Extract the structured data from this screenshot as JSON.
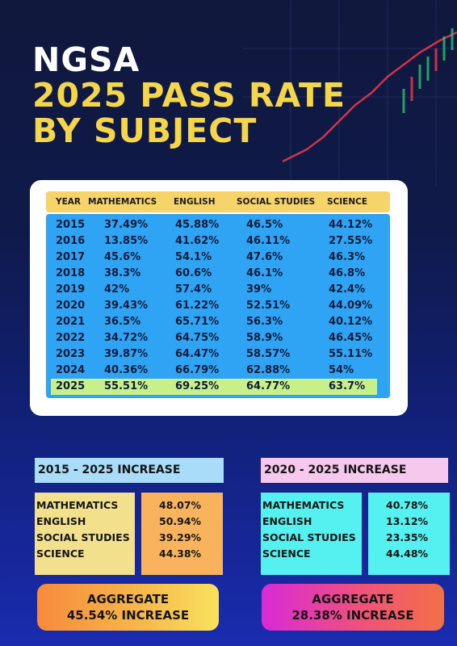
{
  "title": {
    "line1": "NGSA",
    "line2": "2025 PASS RATE",
    "line3": "BY SUBJECT"
  },
  "table": {
    "headers": [
      "YEAR",
      "MATHEMATICS",
      "ENGLISH",
      "SOCIAL STUDIES",
      "SCIENCE"
    ],
    "rows": [
      [
        "2015",
        "37.49%",
        "45.88%",
        "46.5%",
        "44.12%"
      ],
      [
        "2016",
        "13.85%",
        "41.62%",
        "46.11%",
        "27.55%"
      ],
      [
        "2017",
        "45.6%",
        "54.1%",
        "47.6%",
        "46.3%"
      ],
      [
        "2018",
        "38.3%",
        "60.6%",
        "46.1%",
        "46.8%"
      ],
      [
        "2019",
        "42%",
        "57.4%",
        "39%",
        "42.4%"
      ],
      [
        "2020",
        "39.43%",
        "61.22%",
        "52.51%",
        "44.09%"
      ],
      [
        "2021",
        "36.5%",
        "65.71%",
        "56.3%",
        "40.12%"
      ],
      [
        "2022",
        "34.72%",
        "64.75%",
        "58.9%",
        "46.45%"
      ],
      [
        "2023",
        "39.87%",
        "64.47%",
        "58.57%",
        "55.11%"
      ],
      [
        "2024",
        "40.36%",
        "66.79%",
        "62.88%",
        "54%"
      ],
      [
        "2025",
        "55.51%",
        "69.25%",
        "64.77%",
        "63.7%"
      ]
    ]
  },
  "increase_2015": {
    "title": "2015 - 2025 INCREASE",
    "subjects": [
      "MATHEMATICS",
      "ENGLISH",
      "SOCIAL STUDIES",
      "SCIENCE"
    ],
    "values": [
      "48.07%",
      "50.94%",
      "39.29%",
      "44.38%"
    ],
    "aggregate_label": "AGGREGATE",
    "aggregate_value": "45.54% INCREASE"
  },
  "increase_2020": {
    "title": "2020 - 2025 INCREASE",
    "subjects": [
      "MATHEMATICS",
      "ENGLISH",
      "SOCIAL STUDIES",
      "SCIENCE"
    ],
    "values": [
      "40.78%",
      "13.12%",
      "23.35%",
      "44.48%"
    ],
    "aggregate_label": "AGGREGATE",
    "aggregate_value": "28.38% INCREASE"
  },
  "colors": {
    "title_white": "#ffffff",
    "title_yellow": "#f5d54a",
    "header_row": "#f7d46a",
    "table_body": "#2fa4f4",
    "highlight_row": "#c7f08a"
  }
}
